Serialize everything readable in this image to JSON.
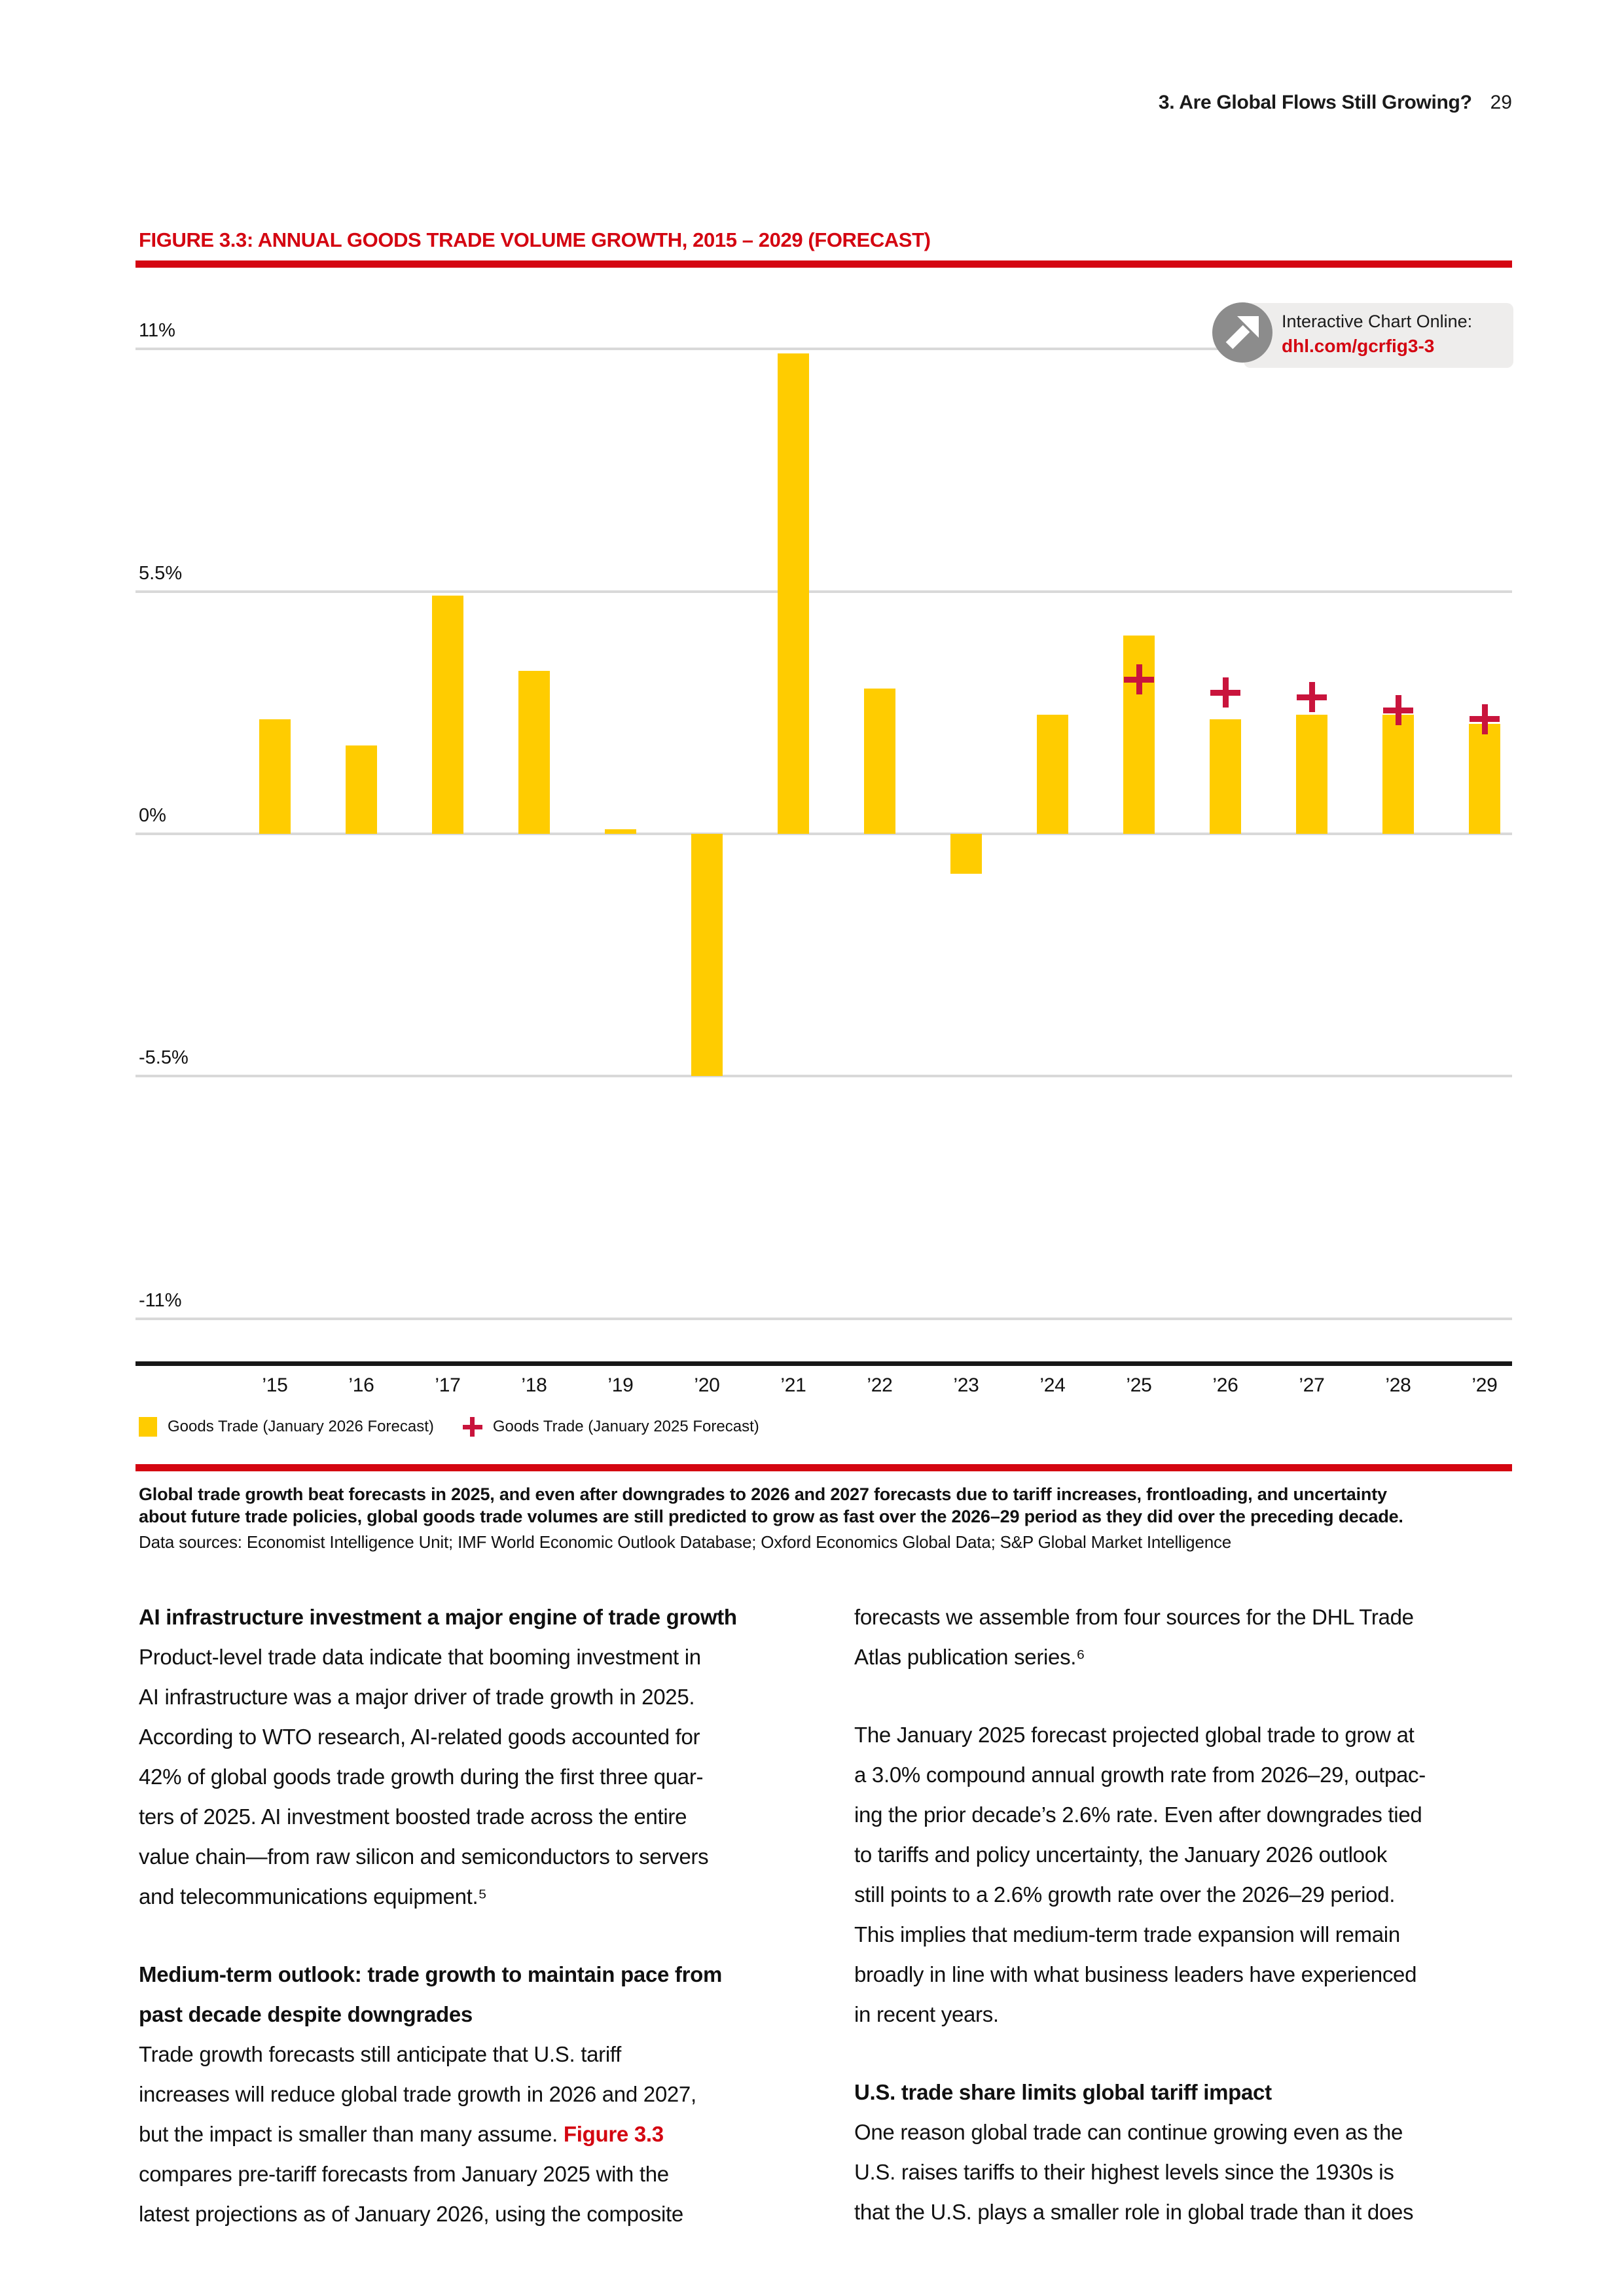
{
  "colors": {
    "dhl_red": "#D40511",
    "bar_yellow": "#FFCC00",
    "plus_red": "#C9143C",
    "gridline_gray": "#D9D9D9",
    "badge_bg": "#EEEDEC",
    "badge_circle_gray": "#8C8C8C"
  },
  "header": {
    "section_title": "3. Are Global Flows Still Growing?",
    "page_number": "29"
  },
  "figure": {
    "title": "FIGURE 3.3: ANNUAL GOODS TRADE VOLUME GROWTH, 2015 – 2029 (FORECAST)",
    "badge": {
      "line1": "Interactive Chart Online:",
      "link": "dhl.com/gcrfig3-3",
      "icon": "arrow-up-right-icon"
    },
    "caption_bold": "Global trade growth beat forecasts in 2025, and even after downgrades to 2026 and 2027 forecasts due to tariff increases, frontloading, and uncertainty\nabout future trade policies, global goods trade volumes are still predicted to grow as fast over the 2026–29 period as they did over the preceding decade.",
    "data_sources": "Data sources: Economist Intelligence Unit; IMF World Economic Outlook Database; Oxford Economics Global Data; S&P Global Market Intelligence"
  },
  "chart_data": {
    "type": "bar",
    "title": "Annual goods trade volume growth, 2015–2029 (forecast)",
    "categories": [
      "’15",
      "’16",
      "’17",
      "’18",
      "’19",
      "’20",
      "’21",
      "’22",
      "’23",
      "’24",
      "’25",
      "’26",
      "’27",
      "’28",
      "’29"
    ],
    "series": [
      {
        "name": "Goods Trade (January 2026 Forecast)",
        "marker": "bar",
        "color": "#FFCC00",
        "values": [
          2.6,
          2.0,
          5.4,
          3.7,
          0.1,
          -5.5,
          10.9,
          3.3,
          -0.9,
          2.7,
          4.5,
          2.6,
          2.7,
          2.7,
          2.5
        ]
      },
      {
        "name": "Goods Trade (January 2025 Forecast)",
        "marker": "plus",
        "color": "#C9143C",
        "values": [
          null,
          null,
          null,
          null,
          null,
          null,
          null,
          null,
          null,
          null,
          3.5,
          3.2,
          3.1,
          2.8,
          2.6
        ]
      }
    ],
    "ylim": [
      -11,
      11
    ],
    "yticks": [
      {
        "value": 11,
        "label": "11%"
      },
      {
        "value": 5.5,
        "label": "5.5%"
      },
      {
        "value": 0,
        "label": "0%"
      },
      {
        "value": -5.5,
        "label": "-5.5%"
      },
      {
        "value": -11,
        "label": "-11%"
      }
    ],
    "grid": true,
    "legend_position": "bottom"
  },
  "legend": {
    "items": [
      {
        "swatch": "square",
        "color": "#FFCC00",
        "label": "Goods Trade (January 2026 Forecast)"
      },
      {
        "swatch": "plus",
        "color": "#C9143C",
        "label": "Goods Trade (January 2025 Forecast)"
      }
    ]
  },
  "body": {
    "columns": [
      {
        "sections": [
          {
            "heading": "AI infrastructure investment a major engine of trade growth",
            "text": "Product-level trade data indicate that booming investment in\nAI infrastructure was a major driver of trade growth in 2025.\nAccording to WTO research, AI-related goods accounted for\n42% of global goods trade growth during the first three quar-\nters of 2025. AI investment boosted trade across the entire\nvalue chain—from raw silicon and semiconductors to servers\nand telecommunications equipment.⁵"
          },
          {
            "heading": "Medium-term outlook: trade growth to maintain pace from\npast decade despite downgrades",
            "pre": "Trade growth forecasts still anticipate that U.S. tariff\nincreases will reduce global trade growth in 2026 and 2027,\nbut the impact is smaller than many assume. ",
            "red": "Figure 3.3",
            "post": "\ncompares pre-tariff forecasts from January 2025 with the\nlatest projections as of January 2026, using the composite"
          }
        ]
      },
      {
        "sections": [
          {
            "text": "forecasts we assemble from four sources for the DHL Trade\nAtlas publication series.⁶"
          },
          {
            "text": "The January 2025 forecast projected global trade to grow at\na 3.0% compound annual growth rate from 2026–29, outpac-\ning the prior decade’s 2.6% rate. Even after downgrades tied\nto tariffs and policy uncertainty, the January 2026 outlook\nstill points to a 2.6% growth rate over the 2026–29 period.\nThis implies that medium-term trade expansion will remain\nbroadly in line with what business leaders have experienced\nin recent years."
          },
          {
            "heading": "U.S. trade share limits global tariff impact",
            "text": "One reason global trade can continue growing even as the\nU.S. raises tariffs to their highest levels since the 1930s is\nthat the U.S. plays a smaller role in global trade than it does"
          }
        ]
      }
    ]
  }
}
